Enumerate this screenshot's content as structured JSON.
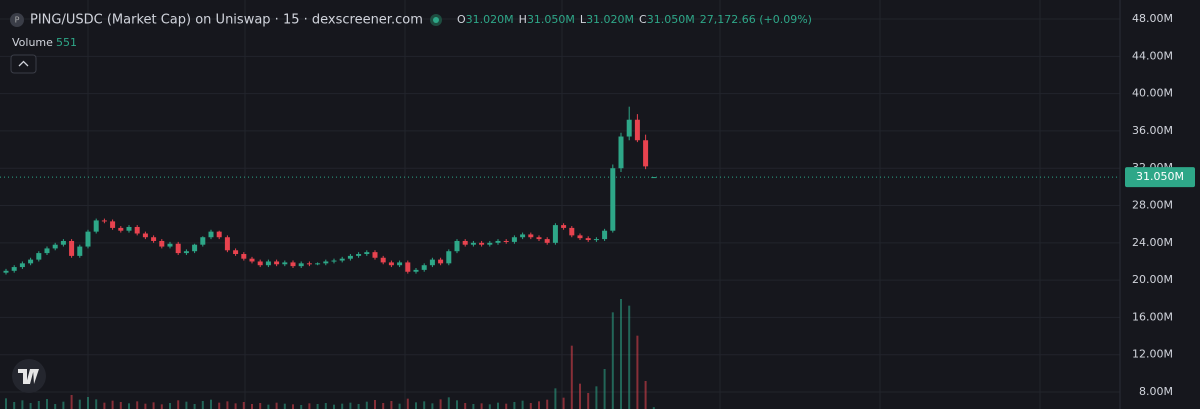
{
  "header": {
    "symbol_icon": "P",
    "title": "PING/USDC (Market Cap) on Uniswap · 15 · dexscreener.com",
    "open_label": "O",
    "open": "31.020M",
    "high_label": "H",
    "high": "31.050M",
    "low_label": "L",
    "low": "31.020M",
    "close_label": "C",
    "close": "31.050M",
    "change": "27,172.66 (+0.09%)",
    "volume_label": "Volume",
    "volume": "551"
  },
  "chart_data": {
    "type": "candlestick",
    "open": [
      20.8,
      21.0,
      21.4,
      21.8,
      22.2,
      22.9,
      23.4,
      23.8,
      24.2,
      22.6,
      23.6,
      25.2,
      26.4,
      26.3,
      25.6,
      25.3,
      25.7,
      25.0,
      24.6,
      24.2,
      23.6,
      23.9,
      22.9,
      23.1,
      23.8,
      24.6,
      25.2,
      24.6,
      23.2,
      22.8,
      22.3,
      22.0,
      21.6,
      22.0,
      21.7,
      21.9,
      21.5,
      21.8,
      21.7,
      21.8,
      22.0,
      22.1,
      22.3,
      22.6,
      22.8,
      23.0,
      22.4,
      21.9,
      21.6,
      21.9,
      20.9,
      21.1,
      21.6,
      22.2,
      21.8,
      23.1,
      24.2,
      23.8,
      24.0,
      23.8,
      24.0,
      24.2,
      24.1,
      24.6,
      24.9,
      24.6,
      24.4,
      24.0,
      25.9,
      25.6,
      24.8,
      24.5,
      24.3,
      24.4,
      25.3,
      32.0,
      35.4,
      37.2,
      35.0,
      31.02
    ],
    "high": [
      21.2,
      21.6,
      22.0,
      22.4,
      23.1,
      23.6,
      24.0,
      24.4,
      24.4,
      23.8,
      25.4,
      26.6,
      26.6,
      26.5,
      25.8,
      25.9,
      25.9,
      25.2,
      24.8,
      24.4,
      24.1,
      24.1,
      23.3,
      23.9,
      24.7,
      25.4,
      25.3,
      24.8,
      23.4,
      23.0,
      22.5,
      22.2,
      22.2,
      22.2,
      22.1,
      22.1,
      22.0,
      22.0,
      21.9,
      22.2,
      22.3,
      22.5,
      22.8,
      23.0,
      23.2,
      23.2,
      22.6,
      22.1,
      22.1,
      22.1,
      21.3,
      21.8,
      22.4,
      22.4,
      23.3,
      24.4,
      24.4,
      24.2,
      24.2,
      24.2,
      24.4,
      24.4,
      24.8,
      25.1,
      25.1,
      24.8,
      24.6,
      26.1,
      26.1,
      25.8,
      25.0,
      24.7,
      24.6,
      25.5,
      32.4,
      35.8,
      38.6,
      37.8,
      35.6,
      31.05
    ],
    "low": [
      20.6,
      20.8,
      21.2,
      21.6,
      22.0,
      22.7,
      23.2,
      23.6,
      22.4,
      22.4,
      23.4,
      25.0,
      26.1,
      25.4,
      25.1,
      25.1,
      24.8,
      24.4,
      24.0,
      23.4,
      23.4,
      22.7,
      22.7,
      22.9,
      23.6,
      24.4,
      24.4,
      23.0,
      22.6,
      22.1,
      21.8,
      21.4,
      21.4,
      21.5,
      21.5,
      21.3,
      21.3,
      21.5,
      21.6,
      21.6,
      21.8,
      21.9,
      22.1,
      22.4,
      22.6,
      22.2,
      21.7,
      21.4,
      21.4,
      20.7,
      20.7,
      20.9,
      21.4,
      21.6,
      21.6,
      22.9,
      23.6,
      23.6,
      23.6,
      23.6,
      23.8,
      23.9,
      23.9,
      24.4,
      24.4,
      24.2,
      23.8,
      23.8,
      25.4,
      24.6,
      24.3,
      24.1,
      24.1,
      24.2,
      25.1,
      31.6,
      35.0,
      34.8,
      31.9,
      31.02
    ],
    "close": [
      21.0,
      21.4,
      21.8,
      22.2,
      22.9,
      23.4,
      23.8,
      24.2,
      22.6,
      23.6,
      25.2,
      26.4,
      26.3,
      25.6,
      25.3,
      25.7,
      25.0,
      24.6,
      24.2,
      23.6,
      23.9,
      22.9,
      23.1,
      23.8,
      24.6,
      25.2,
      24.6,
      23.2,
      22.8,
      22.3,
      22.0,
      21.6,
      22.0,
      21.7,
      21.9,
      21.5,
      21.8,
      21.7,
      21.8,
      22.0,
      22.1,
      22.3,
      22.6,
      22.8,
      23.0,
      22.4,
      21.9,
      21.6,
      21.9,
      20.9,
      21.1,
      21.6,
      22.2,
      21.8,
      23.1,
      24.2,
      23.8,
      24.0,
      23.8,
      24.0,
      24.2,
      24.1,
      24.6,
      24.9,
      24.6,
      24.4,
      24.0,
      25.9,
      25.6,
      24.8,
      24.5,
      24.3,
      24.4,
      25.3,
      32.0,
      35.4,
      37.2,
      35.0,
      32.2,
      31.05
    ],
    "volume": [
      3200,
      2100,
      2600,
      1800,
      2400,
      3000,
      1500,
      2200,
      4200,
      2800,
      3600,
      2900,
      1900,
      2500,
      2100,
      1700,
      2300,
      1600,
      2000,
      1400,
      1800,
      2600,
      2200,
      1500,
      2400,
      2800,
      1900,
      2300,
      1700,
      2100,
      1500,
      1800,
      1300,
      1900,
      1600,
      1400,
      1200,
      1700,
      1500,
      1800,
      1300,
      1600,
      1900,
      1500,
      2200,
      2700,
      1800,
      2400,
      1600,
      3100,
      2000,
      2300,
      1700,
      2900,
      3500,
      2600,
      1800,
      1500,
      1700,
      1400,
      1900,
      1600,
      2100,
      2500,
      1800,
      2300,
      2800,
      6200,
      3400,
      19000,
      7600,
      4800,
      6800,
      12000,
      29000,
      33000,
      31000,
      22000,
      8400,
      551
    ],
    "up_color": "#2ea788",
    "down_color": "#e8434f",
    "ylim": [
      6.18,
      50.04
    ],
    "yticks": [
      {
        "value": 48,
        "label": "48.00M"
      },
      {
        "value": 44,
        "label": "44.00M"
      },
      {
        "value": 40,
        "label": "40.00M"
      },
      {
        "value": 36,
        "label": "36.00M"
      },
      {
        "value": 32,
        "label": "32.00M"
      },
      {
        "value": 28,
        "label": "28.00M"
      },
      {
        "value": 24,
        "label": "24.00M"
      },
      {
        "value": 20,
        "label": "20.00M"
      },
      {
        "value": 16,
        "label": "16.00M"
      },
      {
        "value": 12,
        "label": "12.00M"
      },
      {
        "value": 8,
        "label": "8.00M"
      }
    ],
    "grid": true,
    "last_price": {
      "value": 31.05,
      "label": "31.050M"
    }
  }
}
